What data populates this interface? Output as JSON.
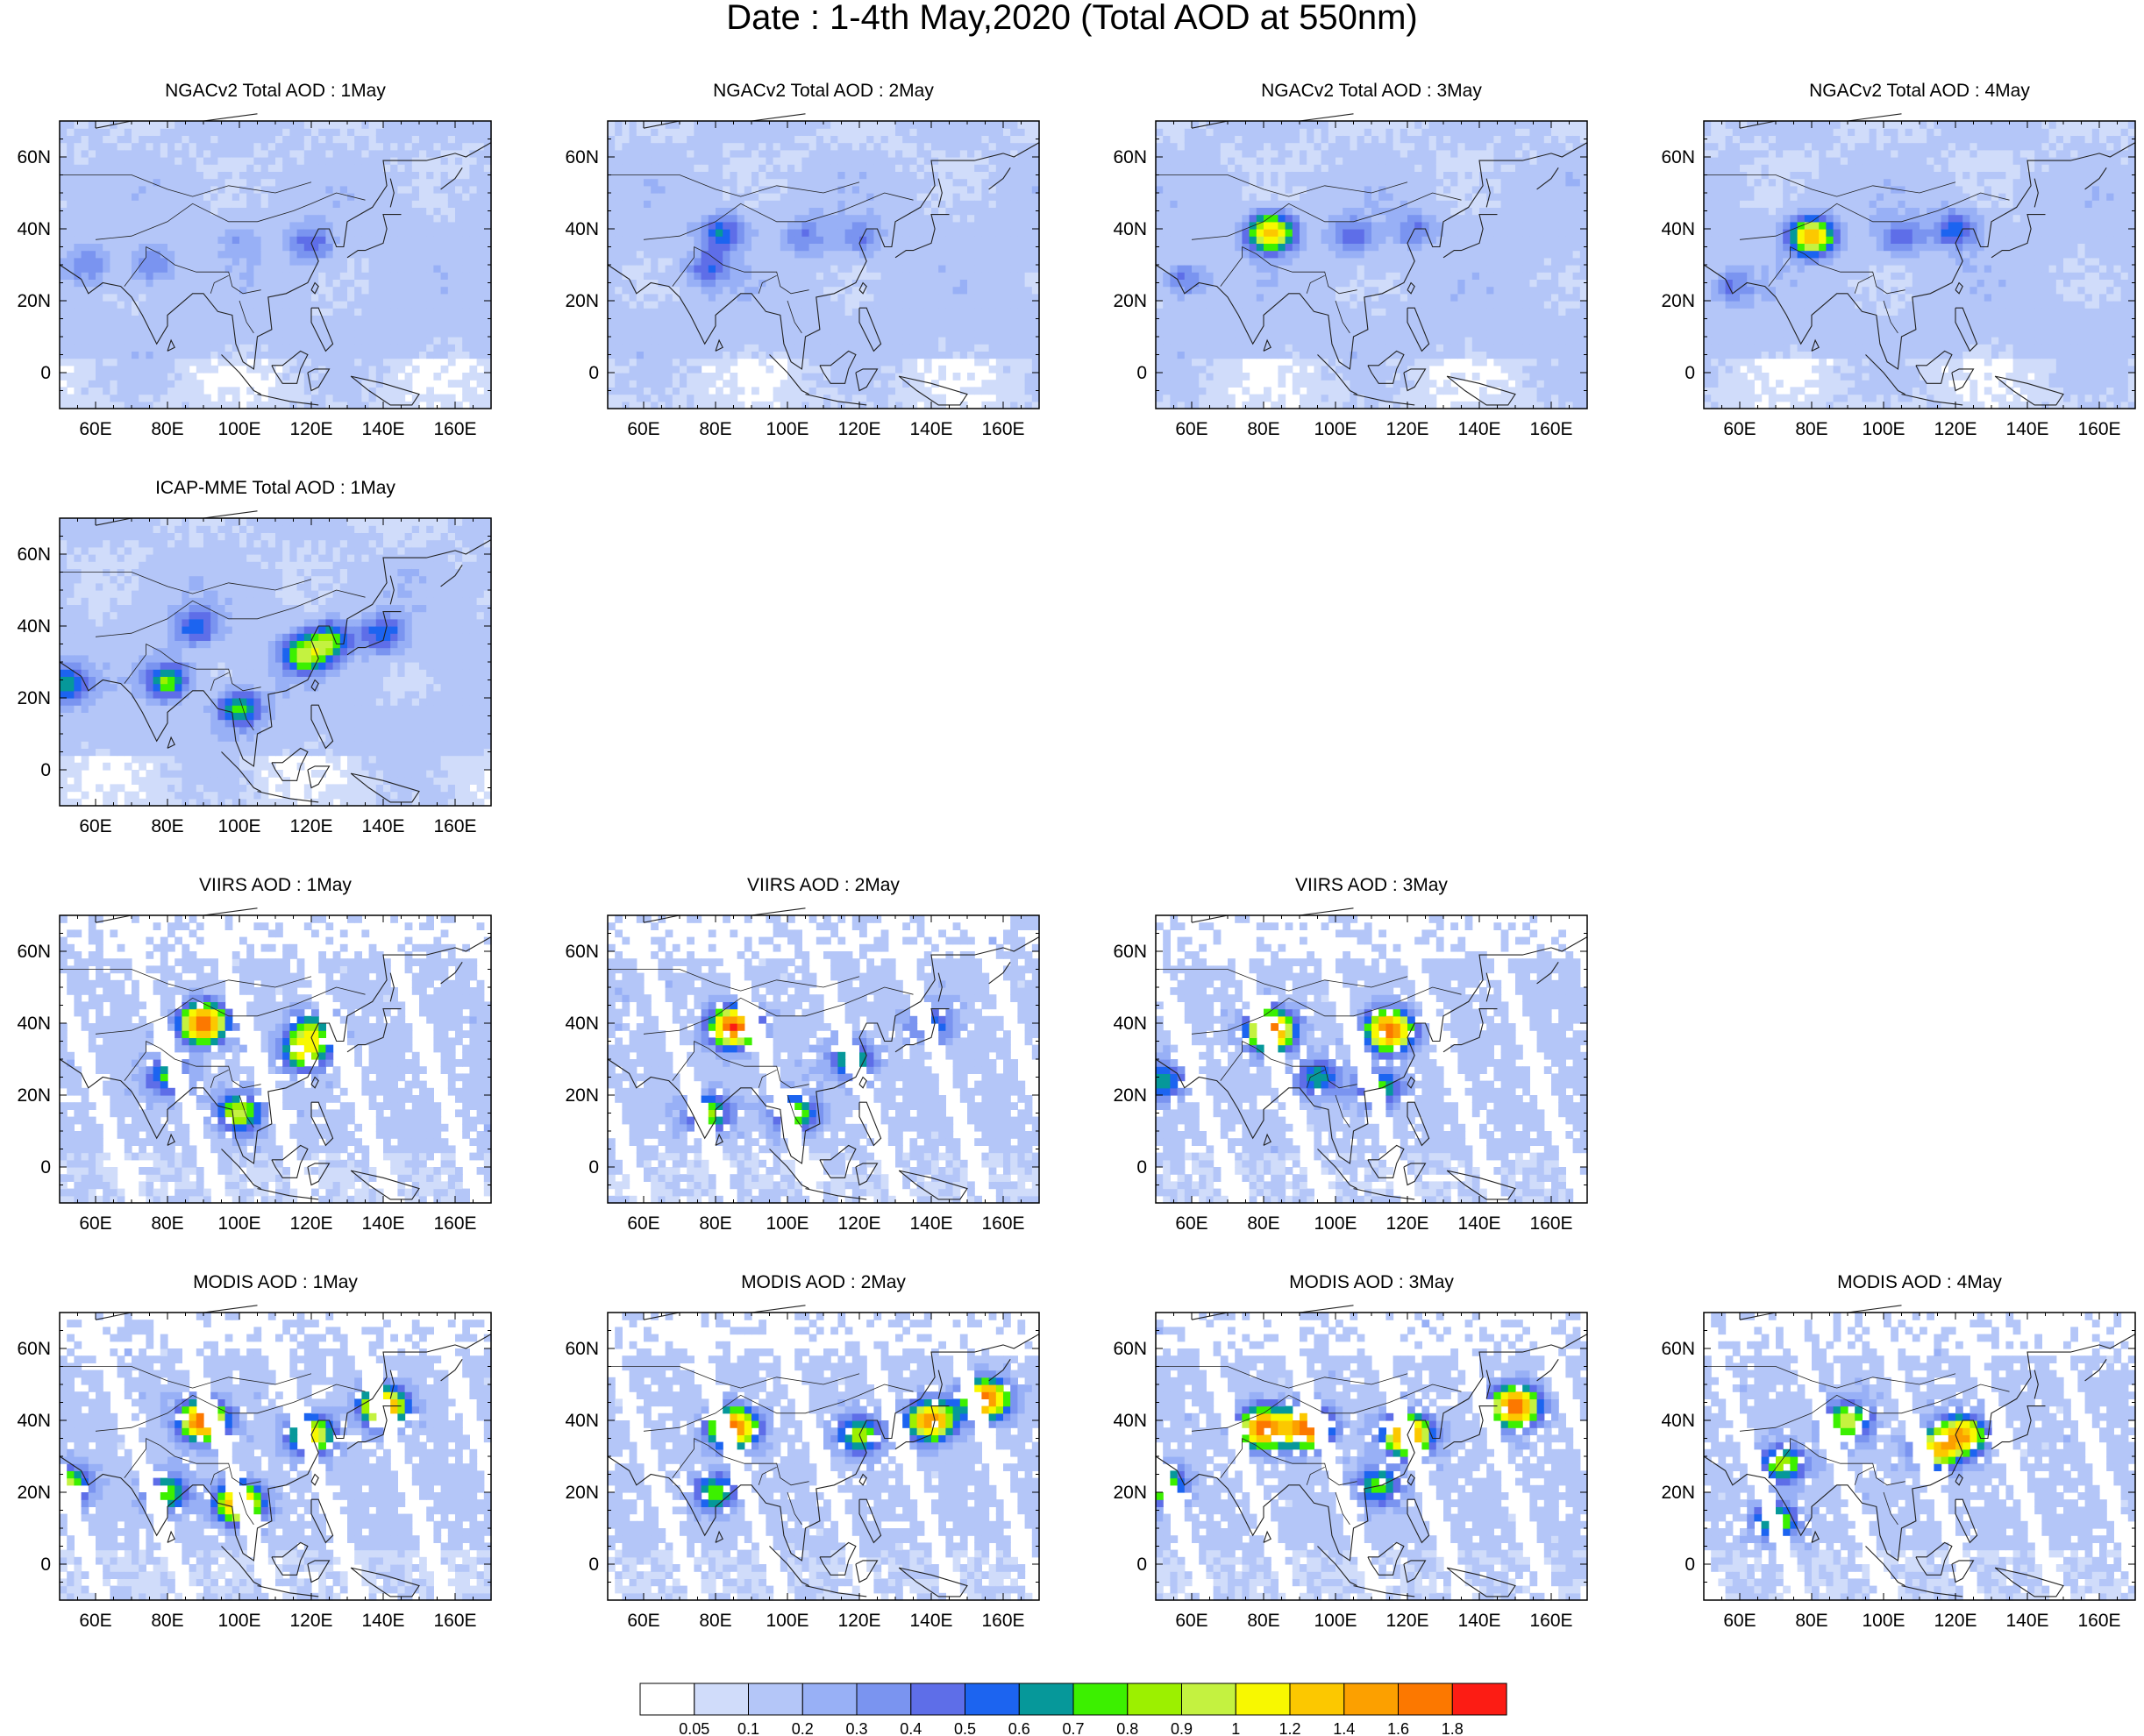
{
  "title": "Date : 1-4th May,2020 (Total AOD at 550nm)",
  "axes": {
    "lon_ticks": [
      {
        "value": 60,
        "label": "60E"
      },
      {
        "value": 80,
        "label": "80E"
      },
      {
        "value": 100,
        "label": "100E"
      },
      {
        "value": 120,
        "label": "120E"
      },
      {
        "value": 140,
        "label": "140E"
      },
      {
        "value": 160,
        "label": "160E"
      }
    ],
    "lat_ticks": [
      {
        "value": 60,
        "label": "60N"
      },
      {
        "value": 40,
        "label": "40N"
      },
      {
        "value": 20,
        "label": "20N"
      },
      {
        "value": 0,
        "label": "0"
      }
    ],
    "lon_range": [
      50,
      170
    ],
    "lat_range": [
      -10,
      70
    ]
  },
  "panels": [
    {
      "title": "NGACv2 Total AOD : 1May",
      "row": 0,
      "col": 0,
      "kind": "model",
      "hotspots": [
        {
          "lon": 120,
          "lat": 36,
          "aod": 0.5
        },
        {
          "lon": 76,
          "lat": 30,
          "aod": 0.4
        },
        {
          "lon": 58,
          "lat": 30,
          "aod": 0.4
        },
        {
          "lon": 100,
          "lat": 36,
          "aod": 0.3
        }
      ]
    },
    {
      "title": "NGACv2 Total AOD : 2May",
      "row": 0,
      "col": 1,
      "kind": "model",
      "hotspots": [
        {
          "lon": 82,
          "lat": 39,
          "aod": 0.6
        },
        {
          "lon": 78,
          "lat": 29,
          "aod": 0.5
        },
        {
          "lon": 105,
          "lat": 38,
          "aod": 0.4
        },
        {
          "lon": 120,
          "lat": 38,
          "aod": 0.4
        }
      ]
    },
    {
      "title": "NGACv2 Total AOD : 3May",
      "row": 0,
      "col": 2,
      "kind": "model",
      "hotspots": [
        {
          "lon": 82,
          "lat": 39,
          "aod": 1.3
        },
        {
          "lon": 105,
          "lat": 38,
          "aod": 0.5
        },
        {
          "lon": 122,
          "lat": 40,
          "aod": 0.4
        },
        {
          "lon": 58,
          "lat": 26,
          "aod": 0.4
        }
      ]
    },
    {
      "title": "NGACv2 Total AOD : 4May",
      "row": 0,
      "col": 3,
      "kind": "model",
      "hotspots": [
        {
          "lon": 80,
          "lat": 38,
          "aod": 1.3
        },
        {
          "lon": 120,
          "lat": 40,
          "aod": 0.6
        },
        {
          "lon": 105,
          "lat": 38,
          "aod": 0.5
        },
        {
          "lon": 58,
          "lat": 24,
          "aod": 0.4
        }
      ]
    },
    {
      "title": "ICAP-MME Total AOD : 1May",
      "row": 1,
      "col": 0,
      "kind": "model",
      "hotspots": [
        {
          "lon": 118,
          "lat": 32,
          "aod": 0.9
        },
        {
          "lon": 125,
          "lat": 36,
          "aod": 0.8
        },
        {
          "lon": 100,
          "lat": 17,
          "aod": 0.8
        },
        {
          "lon": 80,
          "lat": 25,
          "aod": 0.8
        },
        {
          "lon": 140,
          "lat": 38,
          "aod": 0.6
        },
        {
          "lon": 88,
          "lat": 40,
          "aod": 0.6
        },
        {
          "lon": 52,
          "lat": 24,
          "aod": 0.7
        }
      ]
    },
    {
      "title": "VIIRS AOD : 1May",
      "row": 2,
      "col": 0,
      "kind": "sat",
      "hotspots": [
        {
          "lon": 90,
          "lat": 40,
          "aod": 1.8
        },
        {
          "lon": 118,
          "lat": 32,
          "aod": 1.0
        },
        {
          "lon": 100,
          "lat": 15,
          "aod": 1.0
        },
        {
          "lon": 120,
          "lat": 38,
          "aod": 0.8
        },
        {
          "lon": 80,
          "lat": 25,
          "aod": 0.7
        }
      ]
    },
    {
      "title": "VIIRS AOD : 2May",
      "row": 2,
      "col": 1,
      "kind": "sat",
      "hotspots": [
        {
          "lon": 85,
          "lat": 39,
          "aod": 1.8
        },
        {
          "lon": 78,
          "lat": 15,
          "aod": 0.9
        },
        {
          "lon": 118,
          "lat": 30,
          "aod": 0.8
        },
        {
          "lon": 102,
          "lat": 15,
          "aod": 0.9
        },
        {
          "lon": 140,
          "lat": 40,
          "aod": 0.6
        }
      ]
    },
    {
      "title": "VIIRS AOD : 3May",
      "row": 2,
      "col": 2,
      "kind": "sat",
      "hotspots": [
        {
          "lon": 82,
          "lat": 38,
          "aod": 1.8
        },
        {
          "lon": 115,
          "lat": 38,
          "aod": 1.8
        },
        {
          "lon": 112,
          "lat": 22,
          "aod": 0.8
        },
        {
          "lon": 95,
          "lat": 25,
          "aod": 0.7
        },
        {
          "lon": 52,
          "lat": 24,
          "aod": 0.7
        }
      ]
    },
    {
      "title": "MODIS AOD : 1May",
      "row": 3,
      "col": 0,
      "kind": "sat",
      "hotspots": [
        {
          "lon": 90,
          "lat": 40,
          "aod": 1.8
        },
        {
          "lon": 120,
          "lat": 36,
          "aod": 1.2
        },
        {
          "lon": 140,
          "lat": 44,
          "aod": 1.6
        },
        {
          "lon": 52,
          "lat": 22,
          "aod": 1.0
        },
        {
          "lon": 80,
          "lat": 20,
          "aod": 0.8
        },
        {
          "lon": 100,
          "lat": 17,
          "aod": 1.6
        }
      ]
    },
    {
      "title": "MODIS AOD : 2May",
      "row": 3,
      "col": 1,
      "kind": "sat",
      "hotspots": [
        {
          "lon": 85,
          "lat": 38,
          "aod": 1.8
        },
        {
          "lon": 120,
          "lat": 36,
          "aod": 0.9
        },
        {
          "lon": 140,
          "lat": 40,
          "aod": 1.6
        },
        {
          "lon": 155,
          "lat": 46,
          "aod": 1.8
        },
        {
          "lon": 80,
          "lat": 20,
          "aod": 0.8
        }
      ]
    },
    {
      "title": "MODIS AOD : 3May",
      "row": 3,
      "col": 2,
      "kind": "sat",
      "hotspots": [
        {
          "lon": 80,
          "lat": 38,
          "aod": 1.8
        },
        {
          "lon": 120,
          "lat": 36,
          "aod": 1.8
        },
        {
          "lon": 150,
          "lat": 44,
          "aod": 1.8
        },
        {
          "lon": 92,
          "lat": 38,
          "aod": 1.8
        },
        {
          "lon": 52,
          "lat": 22,
          "aod": 1.0
        },
        {
          "lon": 112,
          "lat": 22,
          "aod": 0.8
        }
      ]
    },
    {
      "title": "MODIS AOD : 4May",
      "row": 3,
      "col": 3,
      "kind": "sat",
      "hotspots": [
        {
          "lon": 122,
          "lat": 36,
          "aod": 1.4
        },
        {
          "lon": 115,
          "lat": 32,
          "aod": 1.2
        },
        {
          "lon": 90,
          "lat": 40,
          "aod": 1.0
        },
        {
          "lon": 72,
          "lat": 28,
          "aod": 0.9
        },
        {
          "lon": 70,
          "lat": 12,
          "aod": 0.9
        }
      ]
    }
  ],
  "colorbar": {
    "colors": [
      "#ffffff",
      "#d0dcfa",
      "#b4c6f8",
      "#98b0f6",
      "#7a94f0",
      "#5e6ee8",
      "#1c64f0",
      "#06989a",
      "#3cf000",
      "#9cf000",
      "#c4f240",
      "#f8f800",
      "#fcc800",
      "#fca000",
      "#fc7800",
      "#fc1c14"
    ],
    "labels": [
      "0.05",
      "0.1",
      "0.2",
      "0.3",
      "0.4",
      "0.5",
      "0.6",
      "0.7",
      "0.8",
      "0.9",
      "1",
      "1.2",
      "1.4",
      "1.6",
      "1.8"
    ]
  }
}
